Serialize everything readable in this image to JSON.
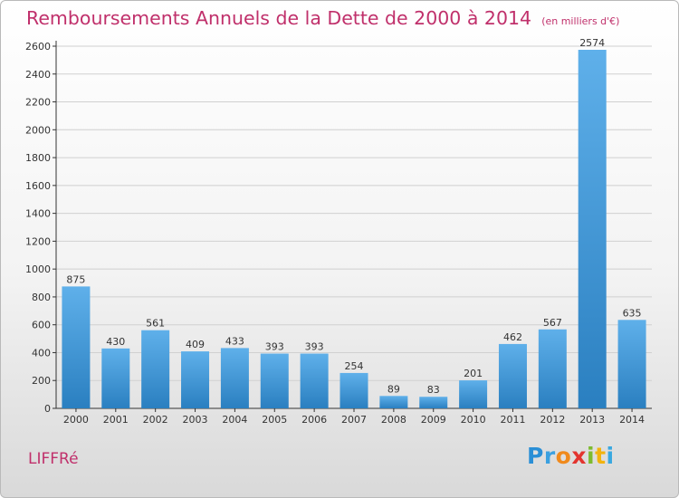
{
  "header": {
    "title": "Remboursements Annuels de la Dette de 2000 à 2014",
    "subtitle": "(en milliers d'€)"
  },
  "footer": {
    "commune": "LIFFRé",
    "logo_letters": [
      "P",
      "r",
      "o",
      "x",
      "i",
      "t",
      "i"
    ]
  },
  "colors": {
    "title": "#c0306b",
    "bar_light": "#5fb0ea",
    "bar_dark": "#2a7fc0",
    "axis": "#333333",
    "grid": "#d0d0d0"
  },
  "chart_data": {
    "type": "bar",
    "title": "Remboursements Annuels de la Dette de 2000 à 2014",
    "subtitle": "(en milliers d'€)",
    "categories": [
      "2000",
      "2001",
      "2002",
      "2003",
      "2004",
      "2005",
      "2006",
      "2007",
      "2008",
      "2009",
      "2010",
      "2011",
      "2012",
      "2013",
      "2014"
    ],
    "values": [
      875,
      430,
      561,
      409,
      433,
      393,
      393,
      254,
      89,
      83,
      201,
      462,
      567,
      2574,
      635
    ],
    "yticks": [
      0,
      200,
      400,
      600,
      800,
      1000,
      1200,
      1400,
      1600,
      1800,
      2000,
      2200,
      2400,
      2600
    ],
    "ylim": [
      0,
      2600
    ],
    "grid": true,
    "legend": "none"
  }
}
